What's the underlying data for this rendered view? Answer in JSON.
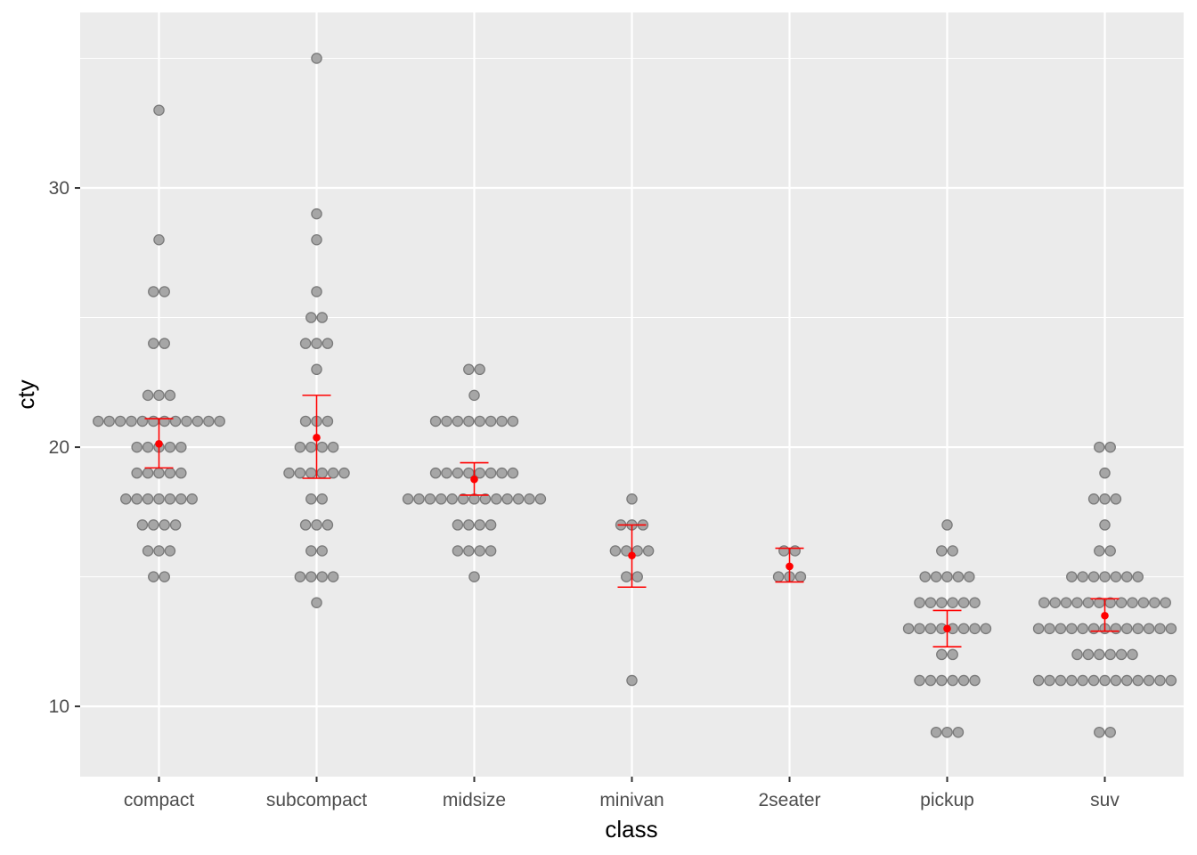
{
  "chart_data": {
    "type": "dotplot",
    "title": "",
    "xlabel": "class",
    "ylabel": "cty",
    "ylim": [
      7.29,
      36.77
    ],
    "yticks": [
      10,
      20,
      30
    ],
    "ytick_labels": [
      "10",
      "20",
      "30"
    ],
    "grid": true,
    "categories": [
      "compact",
      "subcompact",
      "midsize",
      "minivan",
      "2seater",
      "pickup",
      "suv"
    ],
    "dot_counts": [
      {
        "33": 1,
        "28": 1,
        "26": 2,
        "24": 2,
        "22": 3,
        "21": 12,
        "20": 5,
        "19": 5,
        "18": 7,
        "17": 4,
        "16": 3,
        "15": 2
      },
      {
        "35": 1,
        "29": 1,
        "28": 1,
        "26": 1,
        "25": 2,
        "24": 3,
        "23": 1,
        "21": 3,
        "20": 4,
        "19": 6,
        "18": 2,
        "17": 3,
        "16": 2,
        "15": 4,
        "14": 1
      },
      {
        "23": 2,
        "22": 1,
        "21": 8,
        "19": 8,
        "18": 13,
        "17": 4,
        "16": 4,
        "15": 1
      },
      {
        "18": 1,
        "17": 3,
        "16": 4,
        "15": 2,
        "11": 1
      },
      {
        "16": 2,
        "15": 3
      },
      {
        "17": 1,
        "16": 2,
        "15": 5,
        "14": 6,
        "13": 8,
        "12": 2,
        "11": 6,
        "9": 3
      },
      {
        "20": 2,
        "19": 1,
        "18": 3,
        "17": 1,
        "16": 2,
        "15": 7,
        "14": 12,
        "13": 13,
        "12": 6,
        "11": 13,
        "9": 2
      }
    ],
    "mean": [
      20.13,
      20.37,
      18.76,
      15.82,
      15.4,
      13.0,
      13.5
    ],
    "ci_low": [
      19.2,
      18.8,
      18.15,
      14.6,
      14.8,
      12.3,
      12.9
    ],
    "ci_high": [
      21.1,
      22.0,
      19.4,
      17.0,
      16.1,
      13.7,
      14.15
    ],
    "colors": {
      "panel": "#ebebeb",
      "grid": "#ffffff",
      "dot_fill": "#a6a6a6",
      "dot_stroke": "#7a7a7a",
      "summary": "#ff0000"
    }
  }
}
